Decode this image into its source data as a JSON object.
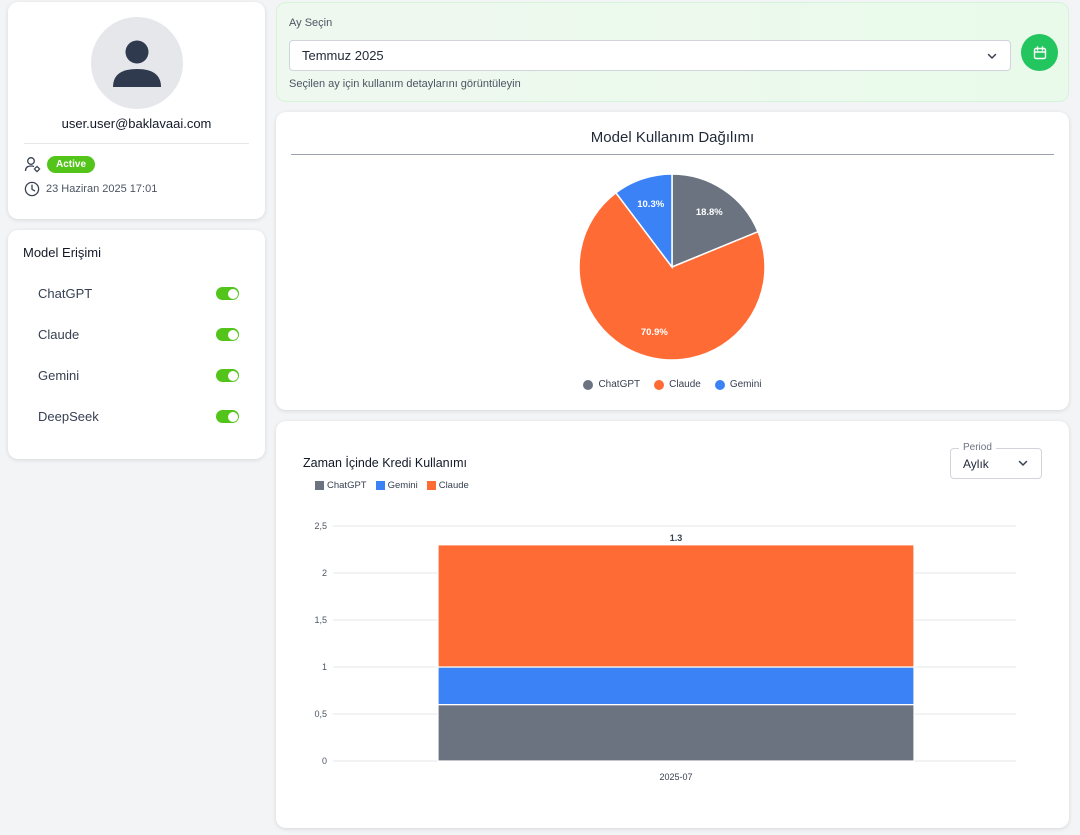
{
  "profile": {
    "email": "user.user@baklavaai.com",
    "status": "Active",
    "date": "23 Haziran 2025 17:01"
  },
  "model_access": {
    "title": "Model Erişimi",
    "models": [
      {
        "label": "ChatGPT",
        "enabled": true
      },
      {
        "label": "Claude",
        "enabled": true
      },
      {
        "label": "Gemini",
        "enabled": true
      },
      {
        "label": "DeepSeek",
        "enabled": true
      }
    ]
  },
  "month_select": {
    "label": "Ay Seçin",
    "value": "Temmuz 2025",
    "hint": "Seçilen ay için kullanım detaylarını görüntüleyin"
  },
  "colors": {
    "chatgpt": "#6b7280",
    "claude": "#ff6b35",
    "gemini": "#3b82f6",
    "success": "#52c41a",
    "button": "#22c55e"
  },
  "pie_card": {
    "title": "Model Kullanım Dağılımı"
  },
  "bar_card": {
    "title": "Zaman İçinde Kredi Kullanımı",
    "period_label": "Period",
    "period_value": "Aylık"
  },
  "chart_data": [
    {
      "type": "pie",
      "title": "Model Kullanım Dağılımı",
      "labels": [
        "ChatGPT",
        "Claude",
        "Gemini"
      ],
      "values": [
        18.8,
        70.9,
        10.3
      ],
      "value_labels": [
        "18.8%",
        "70.9%",
        "10.3%"
      ],
      "colors": [
        "#6b7280",
        "#ff6b35",
        "#3b82f6"
      ],
      "legend": "bottom"
    },
    {
      "type": "bar",
      "stacked": true,
      "title": "Zaman İçinde Kredi Kullanımı",
      "categories": [
        "2025-07"
      ],
      "series": [
        {
          "name": "ChatGPT",
          "values": [
            0.6
          ],
          "labels": [
            "0.6"
          ],
          "color": "#6b7280"
        },
        {
          "name": "Gemini",
          "values": [
            0.4
          ],
          "labels": [
            "0.4"
          ],
          "color": "#3b82f6"
        },
        {
          "name": "Claude",
          "values": [
            1.3
          ],
          "labels": [
            "1.3"
          ],
          "color": "#ff6b35"
        }
      ],
      "ylim": [
        0,
        2.5
      ],
      "yticks": [
        "0",
        "0,5",
        "1",
        "1,5",
        "2",
        "2,5"
      ],
      "grid": true,
      "legend": "top-left"
    }
  ]
}
